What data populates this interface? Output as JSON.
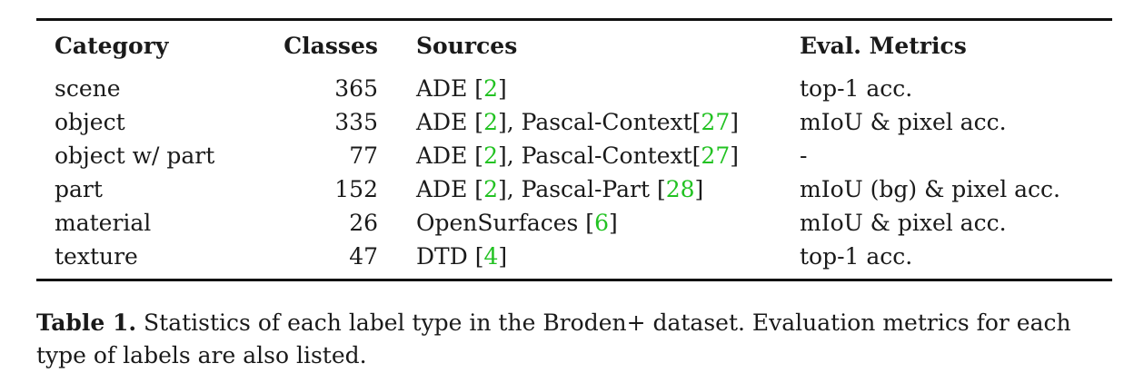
{
  "table": {
    "headers": {
      "category": "Category",
      "classes": "Classes",
      "sources": "Sources",
      "metrics": "Eval. Metrics"
    },
    "rows": [
      {
        "category": "scene",
        "classes": "365",
        "sources": [
          {
            "text": "ADE ["
          },
          {
            "text": "2",
            "cite": true
          },
          {
            "text": "]"
          }
        ],
        "metrics": "top-1 acc."
      },
      {
        "category": "object",
        "classes": "335",
        "sources": [
          {
            "text": "ADE ["
          },
          {
            "text": "2",
            "cite": true
          },
          {
            "text": "], Pascal-Context["
          },
          {
            "text": "27",
            "cite": true
          },
          {
            "text": "]"
          }
        ],
        "metrics": "mIoU & pixel acc."
      },
      {
        "category": "object w/ part",
        "classes": "77",
        "sources": [
          {
            "text": "ADE ["
          },
          {
            "text": "2",
            "cite": true
          },
          {
            "text": "], Pascal-Context["
          },
          {
            "text": "27",
            "cite": true
          },
          {
            "text": "]"
          }
        ],
        "metrics": "-"
      },
      {
        "category": "part",
        "classes": "152",
        "sources": [
          {
            "text": "ADE ["
          },
          {
            "text": "2",
            "cite": true
          },
          {
            "text": "], Pascal-Part ["
          },
          {
            "text": "28",
            "cite": true
          },
          {
            "text": "]"
          }
        ],
        "metrics": "mIoU (bg) & pixel acc."
      },
      {
        "category": "material",
        "classes": "26",
        "sources": [
          {
            "text": "OpenSurfaces ["
          },
          {
            "text": "6",
            "cite": true
          },
          {
            "text": "]"
          }
        ],
        "metrics": "mIoU & pixel acc."
      },
      {
        "category": "texture",
        "classes": "47",
        "sources": [
          {
            "text": "DTD ["
          },
          {
            "text": "4",
            "cite": true
          },
          {
            "text": "]"
          }
        ],
        "metrics": "top-1 acc."
      }
    ]
  },
  "caption": {
    "label": "Table 1.",
    "text": " Statistics of each label type in the Broden+ dataset. Evaluation metrics for each type of labels are also listed."
  },
  "colors": {
    "citation": "#22c222",
    "text": "#1a1a1a"
  }
}
